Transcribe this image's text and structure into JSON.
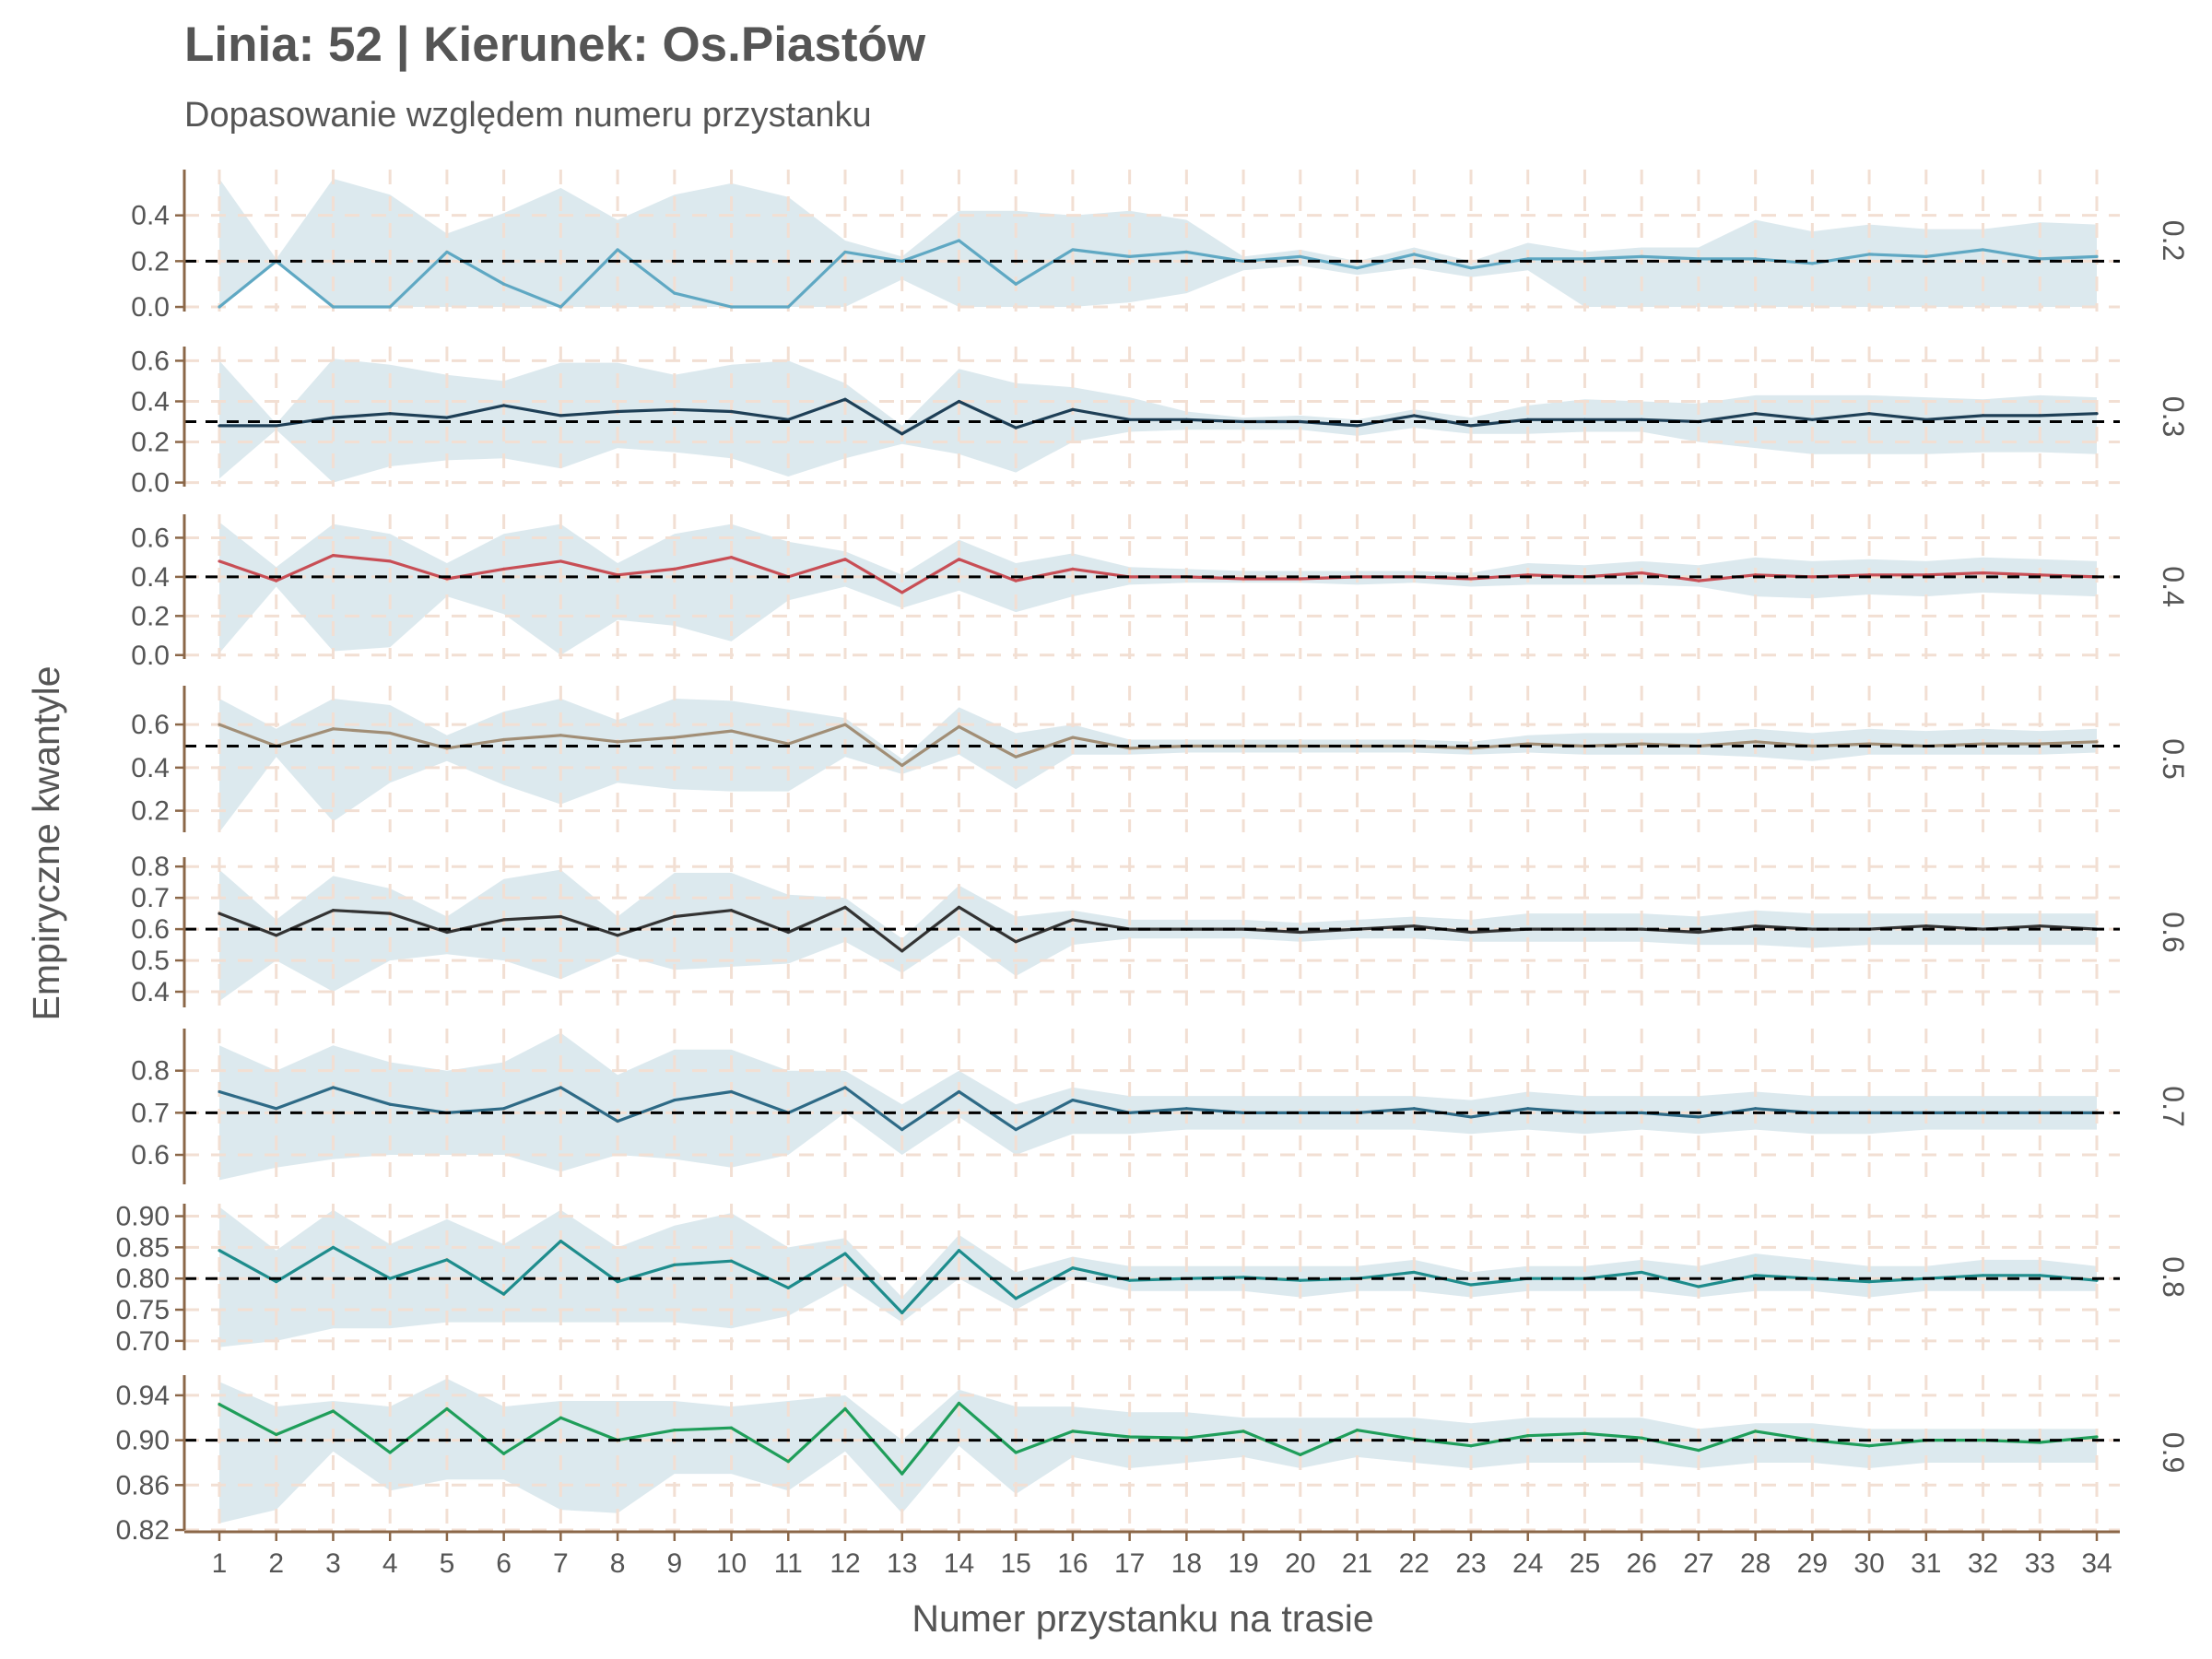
{
  "header": {
    "title": "Linia: 52 | Kierunek: Os.Piastów",
    "subtitle": "Dopasowanie względem numeru przystanku"
  },
  "colors": {
    "ribbon": "#dce9ee",
    "grid": "#f2dfd3",
    "axis": "#8b6748",
    "reference": "#000000",
    "text": "#555555"
  },
  "chart_data": {
    "type": "line",
    "xlabel": "Numer przystanku na trasie",
    "ylabel": "Empiryczne kwantyle",
    "grid": "dashed",
    "xlim": [
      1,
      34
    ],
    "x": [
      1,
      2,
      3,
      4,
      5,
      6,
      7,
      8,
      9,
      10,
      11,
      12,
      13,
      14,
      15,
      16,
      17,
      18,
      19,
      20,
      21,
      22,
      23,
      24,
      25,
      26,
      27,
      28,
      29,
      30,
      31,
      32,
      33,
      34
    ],
    "facets": [
      {
        "label": "0.2",
        "reference": 0.2,
        "color": "#5fa8c3",
        "ylim": [
          -0.02,
          0.6
        ],
        "yticks": [
          0.0,
          0.2,
          0.4
        ],
        "ytick_labels": [
          "0.0",
          "0.2",
          "0.4"
        ],
        "values": [
          0.0,
          0.2,
          0.0,
          0.0,
          0.24,
          0.1,
          0.0,
          0.25,
          0.06,
          0.0,
          0.0,
          0.24,
          0.2,
          0.29,
          0.1,
          0.25,
          0.22,
          0.24,
          0.2,
          0.22,
          0.17,
          0.23,
          0.17,
          0.21,
          0.21,
          0.22,
          0.21,
          0.21,
          0.19,
          0.23,
          0.22,
          0.25,
          0.21,
          0.22
        ],
        "lower": [
          0.0,
          0.2,
          0.0,
          0.0,
          0.0,
          0.0,
          0.0,
          0.0,
          0.0,
          0.0,
          0.0,
          0.0,
          0.12,
          0.0,
          0.0,
          0.0,
          0.02,
          0.06,
          0.16,
          0.18,
          0.14,
          0.17,
          0.13,
          0.16,
          0.0,
          0.0,
          0.0,
          0.0,
          0.0,
          0.0,
          0.0,
          0.0,
          0.0,
          0.0
        ],
        "upper": [
          0.56,
          0.21,
          0.56,
          0.49,
          0.32,
          0.41,
          0.52,
          0.38,
          0.49,
          0.54,
          0.48,
          0.29,
          0.22,
          0.42,
          0.42,
          0.4,
          0.42,
          0.38,
          0.22,
          0.25,
          0.2,
          0.26,
          0.2,
          0.28,
          0.24,
          0.26,
          0.26,
          0.38,
          0.33,
          0.36,
          0.34,
          0.34,
          0.37,
          0.36
        ]
      },
      {
        "label": "0.3",
        "reference": 0.3,
        "color": "#1e3f56",
        "ylim": [
          -0.02,
          0.67
        ],
        "yticks": [
          0.0,
          0.2,
          0.4,
          0.6
        ],
        "ytick_labels": [
          "0.0",
          "0.2",
          "0.4",
          "0.6"
        ],
        "values": [
          0.28,
          0.28,
          0.32,
          0.34,
          0.32,
          0.38,
          0.33,
          0.35,
          0.36,
          0.35,
          0.31,
          0.41,
          0.24,
          0.4,
          0.27,
          0.36,
          0.31,
          0.31,
          0.3,
          0.3,
          0.28,
          0.33,
          0.28,
          0.31,
          0.31,
          0.31,
          0.3,
          0.34,
          0.31,
          0.34,
          0.31,
          0.33,
          0.33,
          0.34
        ],
        "lower": [
          0.02,
          0.26,
          0.0,
          0.08,
          0.11,
          0.12,
          0.07,
          0.17,
          0.15,
          0.12,
          0.03,
          0.12,
          0.19,
          0.14,
          0.05,
          0.2,
          0.25,
          0.26,
          0.26,
          0.26,
          0.23,
          0.27,
          0.24,
          0.24,
          0.25,
          0.25,
          0.2,
          0.17,
          0.14,
          0.14,
          0.14,
          0.15,
          0.15,
          0.14
        ],
        "upper": [
          0.6,
          0.29,
          0.61,
          0.58,
          0.53,
          0.5,
          0.59,
          0.59,
          0.53,
          0.58,
          0.6,
          0.49,
          0.28,
          0.56,
          0.49,
          0.47,
          0.42,
          0.35,
          0.32,
          0.33,
          0.31,
          0.36,
          0.32,
          0.38,
          0.41,
          0.4,
          0.39,
          0.43,
          0.43,
          0.43,
          0.42,
          0.41,
          0.43,
          0.42
        ]
      },
      {
        "label": "0.4",
        "reference": 0.4,
        "color": "#c84e55",
        "ylim": [
          -0.02,
          0.72
        ],
        "yticks": [
          0.0,
          0.2,
          0.4,
          0.6
        ],
        "ytick_labels": [
          "0.0",
          "0.2",
          "0.4",
          "0.6"
        ],
        "values": [
          0.48,
          0.38,
          0.51,
          0.48,
          0.39,
          0.44,
          0.48,
          0.41,
          0.44,
          0.5,
          0.4,
          0.49,
          0.32,
          0.49,
          0.38,
          0.44,
          0.4,
          0.4,
          0.39,
          0.39,
          0.4,
          0.4,
          0.39,
          0.41,
          0.4,
          0.42,
          0.38,
          0.41,
          0.4,
          0.41,
          0.41,
          0.42,
          0.41,
          0.4
        ],
        "lower": [
          0.01,
          0.35,
          0.02,
          0.04,
          0.3,
          0.21,
          0.0,
          0.18,
          0.15,
          0.07,
          0.28,
          0.35,
          0.24,
          0.33,
          0.22,
          0.3,
          0.36,
          0.37,
          0.37,
          0.37,
          0.36,
          0.37,
          0.35,
          0.36,
          0.36,
          0.36,
          0.35,
          0.3,
          0.29,
          0.31,
          0.3,
          0.32,
          0.31,
          0.3
        ],
        "upper": [
          0.68,
          0.45,
          0.67,
          0.62,
          0.47,
          0.62,
          0.67,
          0.47,
          0.62,
          0.67,
          0.58,
          0.53,
          0.41,
          0.59,
          0.47,
          0.52,
          0.45,
          0.44,
          0.43,
          0.43,
          0.43,
          0.43,
          0.42,
          0.47,
          0.46,
          0.48,
          0.46,
          0.5,
          0.48,
          0.49,
          0.48,
          0.5,
          0.49,
          0.48
        ]
      },
      {
        "label": "0.5",
        "reference": 0.5,
        "color": "#a18e76",
        "ylim": [
          0.1,
          0.78
        ],
        "yticks": [
          0.2,
          0.4,
          0.6
        ],
        "ytick_labels": [
          "0.2",
          "0.4",
          "0.6"
        ],
        "values": [
          0.6,
          0.5,
          0.58,
          0.56,
          0.49,
          0.53,
          0.55,
          0.52,
          0.54,
          0.57,
          0.51,
          0.6,
          0.41,
          0.59,
          0.45,
          0.54,
          0.49,
          0.5,
          0.5,
          0.5,
          0.5,
          0.5,
          0.49,
          0.51,
          0.5,
          0.51,
          0.5,
          0.52,
          0.5,
          0.51,
          0.5,
          0.51,
          0.51,
          0.52
        ],
        "lower": [
          0.1,
          0.45,
          0.15,
          0.33,
          0.43,
          0.32,
          0.23,
          0.33,
          0.3,
          0.29,
          0.29,
          0.45,
          0.37,
          0.46,
          0.3,
          0.46,
          0.46,
          0.47,
          0.47,
          0.47,
          0.47,
          0.47,
          0.46,
          0.47,
          0.46,
          0.46,
          0.46,
          0.45,
          0.43,
          0.46,
          0.46,
          0.46,
          0.46,
          0.47
        ],
        "upper": [
          0.72,
          0.58,
          0.72,
          0.69,
          0.55,
          0.66,
          0.72,
          0.62,
          0.72,
          0.71,
          0.67,
          0.63,
          0.44,
          0.68,
          0.56,
          0.6,
          0.53,
          0.53,
          0.53,
          0.53,
          0.53,
          0.53,
          0.52,
          0.55,
          0.56,
          0.56,
          0.56,
          0.58,
          0.56,
          0.58,
          0.57,
          0.58,
          0.57,
          0.58
        ]
      },
      {
        "label": "0.6",
        "reference": 0.6,
        "color": "#333333",
        "ylim": [
          0.35,
          0.83
        ],
        "yticks": [
          0.4,
          0.5,
          0.6,
          0.7,
          0.8
        ],
        "ytick_labels": [
          "0.4",
          "0.5",
          "0.6",
          "0.7",
          "0.8"
        ],
        "values": [
          0.65,
          0.58,
          0.66,
          0.65,
          0.59,
          0.63,
          0.64,
          0.58,
          0.64,
          0.66,
          0.59,
          0.67,
          0.53,
          0.67,
          0.56,
          0.63,
          0.6,
          0.6,
          0.6,
          0.59,
          0.6,
          0.61,
          0.59,
          0.6,
          0.6,
          0.6,
          0.59,
          0.61,
          0.6,
          0.6,
          0.61,
          0.6,
          0.61,
          0.6
        ],
        "lower": [
          0.37,
          0.5,
          0.4,
          0.5,
          0.52,
          0.5,
          0.44,
          0.52,
          0.47,
          0.48,
          0.49,
          0.56,
          0.46,
          0.58,
          0.45,
          0.55,
          0.57,
          0.57,
          0.57,
          0.56,
          0.57,
          0.57,
          0.56,
          0.56,
          0.56,
          0.56,
          0.55,
          0.55,
          0.54,
          0.55,
          0.55,
          0.55,
          0.55,
          0.55
        ],
        "upper": [
          0.79,
          0.63,
          0.77,
          0.73,
          0.64,
          0.76,
          0.79,
          0.64,
          0.78,
          0.78,
          0.71,
          0.7,
          0.57,
          0.74,
          0.64,
          0.66,
          0.63,
          0.63,
          0.63,
          0.62,
          0.63,
          0.64,
          0.63,
          0.65,
          0.65,
          0.65,
          0.64,
          0.66,
          0.65,
          0.65,
          0.65,
          0.65,
          0.65,
          0.65
        ]
      },
      {
        "label": "0.7",
        "reference": 0.7,
        "color": "#2e6a86",
        "ylim": [
          0.53,
          0.9
        ],
        "yticks": [
          0.6,
          0.7,
          0.8
        ],
        "ytick_labels": [
          "0.6",
          "0.7",
          "0.8"
        ],
        "values": [
          0.75,
          0.71,
          0.76,
          0.72,
          0.7,
          0.71,
          0.76,
          0.68,
          0.73,
          0.75,
          0.7,
          0.76,
          0.66,
          0.75,
          0.66,
          0.73,
          0.7,
          0.71,
          0.7,
          0.7,
          0.7,
          0.71,
          0.69,
          0.71,
          0.7,
          0.7,
          0.69,
          0.71,
          0.7,
          0.7,
          0.7,
          0.7,
          0.7,
          0.7
        ],
        "lower": [
          0.54,
          0.57,
          0.59,
          0.6,
          0.6,
          0.6,
          0.56,
          0.6,
          0.59,
          0.57,
          0.6,
          0.7,
          0.6,
          0.69,
          0.6,
          0.65,
          0.65,
          0.66,
          0.66,
          0.66,
          0.66,
          0.66,
          0.65,
          0.66,
          0.65,
          0.66,
          0.65,
          0.66,
          0.65,
          0.65,
          0.66,
          0.66,
          0.66,
          0.66
        ],
        "upper": [
          0.86,
          0.8,
          0.86,
          0.82,
          0.8,
          0.82,
          0.89,
          0.79,
          0.85,
          0.85,
          0.8,
          0.8,
          0.72,
          0.8,
          0.72,
          0.76,
          0.74,
          0.74,
          0.74,
          0.74,
          0.74,
          0.74,
          0.73,
          0.75,
          0.74,
          0.74,
          0.74,
          0.75,
          0.74,
          0.74,
          0.74,
          0.74,
          0.74,
          0.74
        ]
      },
      {
        "label": "0.8",
        "reference": 0.8,
        "color": "#1e8c8c",
        "ylim": [
          0.685,
          0.92
        ],
        "yticks": [
          0.7,
          0.75,
          0.8,
          0.85,
          0.9
        ],
        "ytick_labels": [
          "0.70",
          "0.75",
          "0.80",
          "0.85",
          "0.90"
        ],
        "values": [
          0.845,
          0.795,
          0.85,
          0.8,
          0.83,
          0.775,
          0.86,
          0.795,
          0.822,
          0.828,
          0.785,
          0.84,
          0.745,
          0.845,
          0.768,
          0.817,
          0.797,
          0.8,
          0.802,
          0.797,
          0.8,
          0.81,
          0.79,
          0.8,
          0.8,
          0.81,
          0.787,
          0.805,
          0.8,
          0.795,
          0.8,
          0.805,
          0.805,
          0.797
        ],
        "lower": [
          0.69,
          0.7,
          0.72,
          0.72,
          0.73,
          0.73,
          0.73,
          0.73,
          0.73,
          0.72,
          0.74,
          0.79,
          0.73,
          0.8,
          0.75,
          0.8,
          0.78,
          0.78,
          0.78,
          0.77,
          0.78,
          0.78,
          0.77,
          0.78,
          0.78,
          0.78,
          0.77,
          0.78,
          0.78,
          0.77,
          0.78,
          0.78,
          0.78,
          0.78
        ],
        "upper": [
          0.915,
          0.845,
          0.91,
          0.855,
          0.895,
          0.855,
          0.91,
          0.85,
          0.885,
          0.905,
          0.85,
          0.865,
          0.77,
          0.87,
          0.81,
          0.835,
          0.82,
          0.82,
          0.82,
          0.82,
          0.82,
          0.83,
          0.81,
          0.82,
          0.82,
          0.83,
          0.82,
          0.84,
          0.83,
          0.82,
          0.82,
          0.83,
          0.83,
          0.82
        ]
      },
      {
        "label": "0.9",
        "reference": 0.9,
        "color": "#1f9e5a",
        "ylim": [
          0.82,
          0.958
        ],
        "yticks": [
          0.82,
          0.86,
          0.9,
          0.94
        ],
        "ytick_labels": [
          "0.82",
          "0.86",
          "0.90",
          "0.94"
        ],
        "values": [
          0.932,
          0.905,
          0.926,
          0.889,
          0.928,
          0.888,
          0.92,
          0.9,
          0.909,
          0.911,
          0.881,
          0.928,
          0.87,
          0.933,
          0.889,
          0.908,
          0.903,
          0.902,
          0.908,
          0.887,
          0.909,
          0.901,
          0.895,
          0.904,
          0.906,
          0.902,
          0.891,
          0.908,
          0.9,
          0.895,
          0.9,
          0.9,
          0.898,
          0.903
        ],
        "lower": [
          0.826,
          0.838,
          0.89,
          0.855,
          0.865,
          0.865,
          0.838,
          0.835,
          0.87,
          0.87,
          0.855,
          0.89,
          0.835,
          0.895,
          0.852,
          0.885,
          0.875,
          0.88,
          0.885,
          0.875,
          0.885,
          0.88,
          0.875,
          0.88,
          0.88,
          0.88,
          0.875,
          0.88,
          0.88,
          0.875,
          0.88,
          0.88,
          0.88,
          0.88
        ],
        "upper": [
          0.952,
          0.93,
          0.935,
          0.93,
          0.955,
          0.93,
          0.935,
          0.935,
          0.935,
          0.93,
          0.935,
          0.94,
          0.9,
          0.945,
          0.93,
          0.93,
          0.925,
          0.925,
          0.92,
          0.92,
          0.92,
          0.92,
          0.915,
          0.92,
          0.92,
          0.92,
          0.91,
          0.915,
          0.915,
          0.91,
          0.91,
          0.91,
          0.91,
          0.91
        ]
      }
    ]
  }
}
